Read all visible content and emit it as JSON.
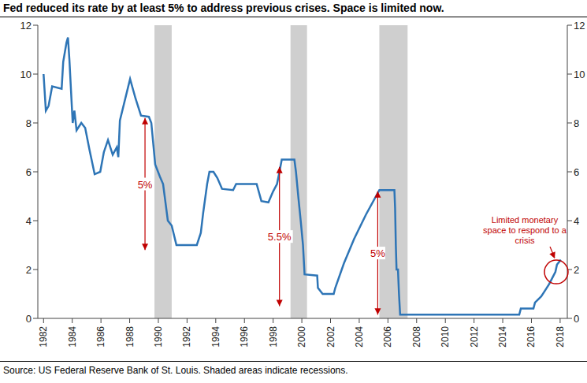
{
  "chart_data": {
    "type": "line",
    "title": "Fed reduced its rate by at least 5% to address previous crises. Space is limited now.",
    "source": "Source: US Federal Reserve Bank of St. Louis. Shaded areas indicate recessions.",
    "x": [
      1982,
      1982.16,
      1982.35,
      1982.6,
      1983.26,
      1983.37,
      1983.6,
      1983.7,
      1983.8,
      1984.03,
      1984.15,
      1984.3,
      1984.63,
      1984.9,
      1985.2,
      1985.56,
      1985.95,
      1986.2,
      1986.49,
      1986.82,
      1987.1,
      1987.21,
      1987.32,
      1988.03,
      1988.41,
      1988.79,
      1989.34,
      1989.51,
      1989.78,
      1990.11,
      1990.33,
      1990.66,
      1990.93,
      1991.26,
      1992.68,
      1992.96,
      1993.12,
      1993.4,
      1993.56,
      1993.84,
      1994.11,
      1994.44,
      1995.21,
      1995.42,
      1996.85,
      1997.18,
      1997.67,
      1998,
      1998.27,
      1998.44,
      1998.6,
      1999.48,
      1999.59,
      1999.75,
      1999.92,
      2000.08,
      2000.19,
      2001.07,
      2001.12,
      2001.45,
      2002.22,
      2002.33,
      2002.93,
      2003.64,
      2004.47,
      2005.4,
      2006.45,
      2006.5,
      2006.55,
      2006.6,
      2006.7,
      2006.77,
      2006.85,
      2015.15,
      2015.26,
      2016.14,
      2016.25,
      2016.68,
      2016.96,
      2017.23,
      2017.45,
      2017.67,
      2017.78,
      2018.05
    ],
    "values": [
      10,
      8.5,
      8.7,
      9.5,
      9.4,
      10.5,
      11.3,
      11.5,
      10.6,
      8.0,
      8.5,
      7.7,
      8.0,
      7.8,
      6.9,
      5.9,
      6.0,
      6.8,
      7.3,
      6.7,
      7.0,
      6.6,
      8.1,
      9.8,
      9.0,
      8.3,
      8.25,
      8.0,
      6.3,
      5.8,
      5.5,
      4.0,
      3.8,
      3.0,
      3.0,
      3.5,
      4.3,
      5.5,
      6.0,
      6.0,
      5.75,
      5.3,
      5.25,
      5.5,
      5.5,
      4.8,
      4.75,
      5.2,
      5.5,
      6.0,
      6.5,
      6.5,
      6.0,
      5.0,
      4.0,
      3.0,
      1.8,
      1.75,
      1.25,
      1.0,
      1.0,
      1.25,
      2.25,
      3.25,
      4.25,
      5.25,
      5.25,
      4.5,
      3.0,
      2.0,
      2.0,
      1.0,
      0.15,
      0.15,
      0.4,
      0.4,
      0.65,
      0.9,
      1.15,
      1.4,
      1.65,
      1.9,
      2.2,
      2.4
    ],
    "color": "#2e75b6",
    "xlim": [
      1981.6,
      2018.5
    ],
    "xticks": [
      1982,
      1984,
      1986,
      1988,
      1990,
      1992,
      1994,
      1996,
      1998,
      2000,
      2002,
      2004,
      2006,
      2008,
      2010,
      2012,
      2014,
      2016,
      2018
    ],
    "ylim": [
      0,
      12
    ],
    "yticks": [
      0,
      2,
      4,
      6,
      8,
      10,
      12
    ],
    "y2lim": [
      0,
      12
    ],
    "y2ticks": [
      0,
      2,
      4,
      6,
      8,
      10,
      12
    ],
    "grid": false,
    "recessions": [
      [
        1989.73,
        1990.93
      ],
      [
        1999.21,
        2000.36
      ],
      [
        2005.4,
        2007.37
      ]
    ],
    "drops": [
      {
        "label": "5%",
        "x": 1989.07,
        "from": 8.2,
        "to": 2.8
      },
      {
        "label": "5.5%",
        "x": 1998.44,
        "from": 6.2,
        "to": 0.5
      },
      {
        "label": "5%",
        "x": 2005.29,
        "from": 5.2,
        "to": 0.15
      }
    ],
    "callout": {
      "text": "Limited monetary space to respond to a crisis",
      "x": 2017.73,
      "y": 1.9
    }
  }
}
